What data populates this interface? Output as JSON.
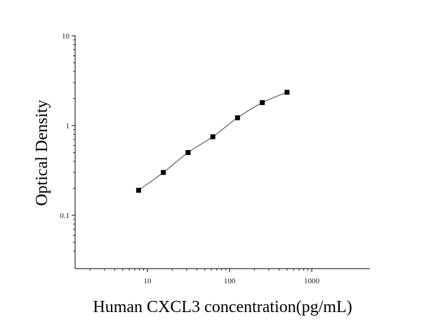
{
  "chart_data": {
    "type": "scatter",
    "title": "",
    "xlabel": "Human CXCL3 concentration(pg/mL)",
    "ylabel": "Optical Density",
    "x_scale": "log",
    "y_scale": "log",
    "xlim": [
      1,
      1000
    ],
    "ylim": [
      0.04,
      10
    ],
    "x_ticks": [
      {
        "value": 10,
        "label": "10"
      },
      {
        "value": 100,
        "label": "100"
      },
      {
        "value": 1000,
        "label": "1000"
      }
    ],
    "y_ticks": [
      {
        "value": 0.1,
        "label": "0.1"
      },
      {
        "value": 1,
        "label": "1"
      },
      {
        "value": 10,
        "label": "10"
      }
    ],
    "grid": false,
    "legend": "none",
    "series": [
      {
        "marker": "square",
        "fit_line": true,
        "x": [
          7.8,
          15.6,
          31.25,
          62.5,
          125,
          250,
          500
        ],
        "y": [
          0.19,
          0.3,
          0.5,
          0.75,
          1.22,
          1.8,
          2.35
        ]
      }
    ],
    "colors": {
      "marker": "#000000",
      "line": "#333333",
      "axis": "#000000"
    }
  }
}
